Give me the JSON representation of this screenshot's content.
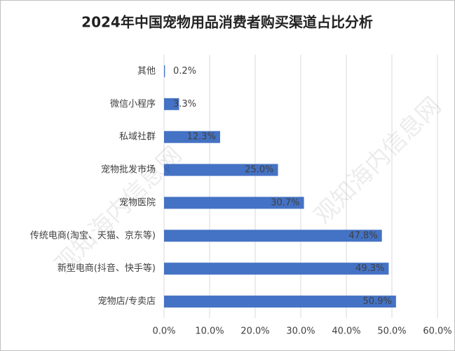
{
  "chart_data": {
    "type": "bar",
    "orientation": "horizontal",
    "title": "2024年中国宠物用品消费者购买渠道占比分析",
    "watermark": "观知海内信息网",
    "categories": [
      "其他",
      "微信小程序",
      "私域社群",
      "宠物批发市场",
      "宠物医院",
      "传统电商(淘宝、天猫、京东等)",
      "新型电商(抖音、快手等)",
      "宠物店/专卖店"
    ],
    "values": [
      0.2,
      3.3,
      12.3,
      25.0,
      30.7,
      47.8,
      49.3,
      50.9
    ],
    "value_labels": [
      "0.2%",
      "3.3%",
      "12.3%",
      "25.0%",
      "30.7%",
      "47.8%",
      "49.3%",
      "50.9%"
    ],
    "color": "#4472c4",
    "xlim": [
      0,
      60
    ],
    "xticks": [
      {
        "value": 0,
        "label": "0.0%"
      },
      {
        "value": 10,
        "label": "10.0%"
      },
      {
        "value": 20,
        "label": "20.0%"
      },
      {
        "value": 30,
        "label": "30.0%"
      },
      {
        "value": 40,
        "label": "40.0%"
      },
      {
        "value": 50,
        "label": "50.0%"
      },
      {
        "value": 60,
        "label": "60.0%"
      }
    ],
    "grid": true
  }
}
